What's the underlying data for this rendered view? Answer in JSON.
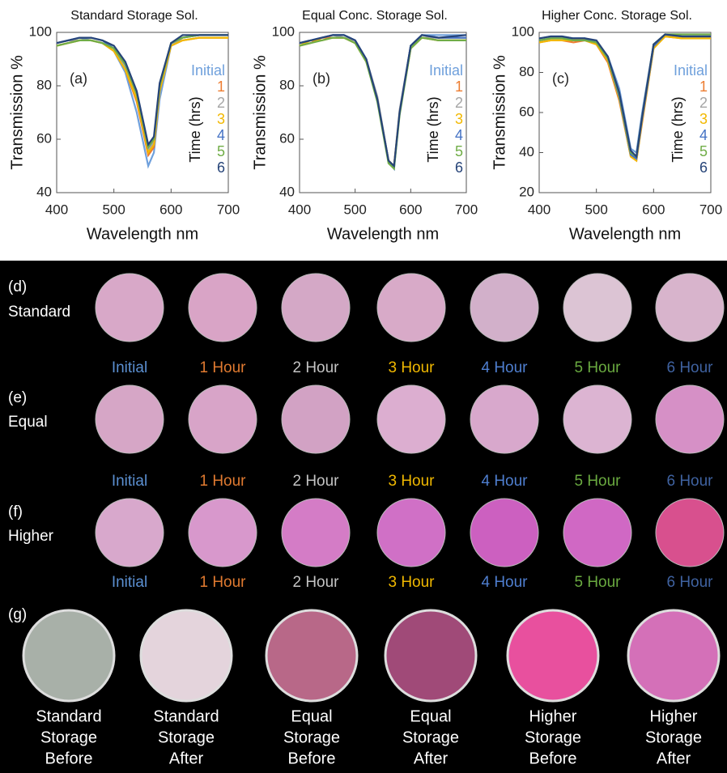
{
  "chart_data": [
    {
      "type": "line",
      "title": "Standard Storage Sol.",
      "panel_label": "(a)",
      "x_label": "Wavelength nm",
      "y_label": "Transmission %",
      "legend_title": "Time (hrs)",
      "x": [
        400,
        420,
        440,
        460,
        480,
        500,
        520,
        540,
        560,
        570,
        580,
        600,
        620,
        650,
        700
      ],
      "xlim": [
        400,
        700
      ],
      "xticks": [
        400,
        500,
        600,
        700
      ],
      "ylim": [
        40,
        100
      ],
      "yticks": [
        40,
        60,
        80,
        100
      ],
      "series": [
        {
          "name": "Initial",
          "color": "#6fa0dc",
          "values": [
            96,
            97,
            98,
            97,
            96,
            93,
            85,
            70,
            50,
            55,
            75,
            95,
            98,
            99,
            99
          ]
        },
        {
          "name": "1",
          "color": "#ed7d31",
          "values": [
            95,
            96,
            97,
            97,
            96,
            93,
            86,
            74,
            54,
            57,
            78,
            95,
            97,
            98,
            98
          ]
        },
        {
          "name": "2",
          "color": "#a5a5a5",
          "values": [
            96,
            97,
            97,
            97,
            96,
            94,
            87,
            76,
            56,
            59,
            79,
            95,
            98,
            99,
            99
          ]
        },
        {
          "name": "3",
          "color": "#f2b800",
          "values": [
            95,
            96,
            97,
            97,
            96,
            93,
            86,
            75,
            55,
            58,
            78,
            95,
            97,
            98,
            98
          ]
        },
        {
          "name": "4",
          "color": "#4472c4",
          "values": [
            96,
            97,
            98,
            98,
            97,
            94,
            88,
            77,
            57,
            60,
            80,
            96,
            98,
            99,
            99
          ]
        },
        {
          "name": "5",
          "color": "#70ad47",
          "values": [
            95,
            96,
            97,
            97,
            96,
            94,
            88,
            77,
            57,
            60,
            80,
            96,
            98,
            99,
            99
          ]
        },
        {
          "name": "6",
          "color": "#264478",
          "values": [
            96,
            97,
            98,
            98,
            97,
            95,
            89,
            78,
            58,
            61,
            81,
            96,
            99,
            99,
            99
          ]
        }
      ]
    },
    {
      "type": "line",
      "title": "Equal Conc. Storage Sol.",
      "panel_label": "(b)",
      "x_label": "Wavelength nm",
      "y_label": "Transmission %",
      "legend_title": "Time (hrs)",
      "x": [
        400,
        420,
        440,
        460,
        480,
        500,
        520,
        540,
        560,
        570,
        580,
        600,
        620,
        650,
        700
      ],
      "xlim": [
        400,
        700
      ],
      "xticks": [
        400,
        500,
        600,
        700
      ],
      "ylim": [
        40,
        100
      ],
      "yticks": [
        40,
        60,
        80,
        100
      ],
      "series": [
        {
          "name": "Initial",
          "color": "#6fa0dc",
          "values": [
            96,
            97,
            98,
            99,
            99,
            97,
            90,
            75,
            52,
            50,
            70,
            95,
            99,
            99,
            99
          ]
        },
        {
          "name": "1",
          "color": "#ed7d31",
          "values": [
            95,
            96,
            98,
            98,
            98,
            96,
            90,
            75,
            52,
            50,
            70,
            94,
            98,
            97,
            97
          ]
        },
        {
          "name": "2",
          "color": "#a5a5a5",
          "values": [
            96,
            97,
            98,
            99,
            98,
            97,
            90,
            76,
            52,
            50,
            71,
            95,
            98,
            98,
            98
          ]
        },
        {
          "name": "3",
          "color": "#f2b800",
          "values": [
            95,
            97,
            97,
            98,
            98,
            96,
            89,
            75,
            52,
            50,
            70,
            94,
            98,
            97,
            97
          ]
        },
        {
          "name": "4",
          "color": "#4472c4",
          "values": [
            96,
            97,
            98,
            99,
            99,
            97,
            90,
            75,
            52,
            49,
            70,
            95,
            99,
            98,
            98
          ]
        },
        {
          "name": "5",
          "color": "#70ad47",
          "values": [
            95,
            96,
            97,
            98,
            98,
            96,
            89,
            74,
            51,
            49,
            69,
            94,
            98,
            97,
            97
          ]
        },
        {
          "name": "6",
          "color": "#264478",
          "values": [
            96,
            97,
            98,
            99,
            99,
            97,
            90,
            75,
            52,
            50,
            70,
            95,
            99,
            98,
            99
          ]
        }
      ]
    },
    {
      "type": "line",
      "title": "Higher Conc. Storage Sol.",
      "panel_label": "(c)",
      "x_label": "Wavelength nm",
      "y_label": "Transmission %",
      "legend_title": "Time (hrs)",
      "x": [
        400,
        420,
        440,
        460,
        480,
        500,
        520,
        540,
        560,
        570,
        580,
        600,
        620,
        650,
        700
      ],
      "xlim": [
        400,
        700
      ],
      "xticks": [
        400,
        500,
        600,
        700
      ],
      "ylim": [
        20,
        100
      ],
      "yticks": [
        20,
        40,
        60,
        80,
        100
      ],
      "series": [
        {
          "name": "Initial",
          "color": "#6fa0dc",
          "values": [
            97,
            98,
            98,
            97,
            97,
            95,
            88,
            72,
            42,
            40,
            60,
            94,
            99,
            99,
            99
          ]
        },
        {
          "name": "1",
          "color": "#ed7d31",
          "values": [
            95,
            96,
            96,
            95,
            96,
            94,
            85,
            66,
            38,
            36,
            55,
            92,
            98,
            97,
            97
          ]
        },
        {
          "name": "2",
          "color": "#a5a5a5",
          "values": [
            96,
            97,
            97,
            96,
            96,
            95,
            86,
            68,
            39,
            37,
            57,
            93,
            98,
            98,
            98
          ]
        },
        {
          "name": "3",
          "color": "#f2b800",
          "values": [
            95,
            96,
            96,
            96,
            96,
            94,
            86,
            67,
            38,
            36,
            56,
            92,
            98,
            97,
            97
          ]
        },
        {
          "name": "4",
          "color": "#4472c4",
          "values": [
            96,
            97,
            97,
            97,
            97,
            95,
            87,
            68,
            39,
            37,
            57,
            93,
            99,
            98,
            98
          ]
        },
        {
          "name": "5",
          "color": "#70ad47",
          "values": [
            96,
            97,
            97,
            96,
            96,
            95,
            87,
            69,
            40,
            38,
            58,
            94,
            99,
            99,
            99
          ]
        },
        {
          "name": "6",
          "color": "#264478",
          "values": [
            97,
            98,
            98,
            97,
            97,
            96,
            88,
            70,
            41,
            38,
            58,
            94,
            99,
            98,
            98
          ]
        }
      ]
    }
  ],
  "rows": [
    {
      "letter": "(d)",
      "name": "Standard",
      "times": [
        "Initial",
        "1 Hour",
        "2 Hour",
        "3 Hour",
        "4 Hour",
        "5 Hour",
        "6 Hour"
      ]
    },
    {
      "letter": "(e)",
      "name": "Equal",
      "times": [
        "Initial",
        "1 Hour",
        "2 Hour",
        "3 Hour",
        "4 Hour",
        "5 Hour",
        "6 Hour"
      ]
    },
    {
      "letter": "(f)",
      "name": "Higher",
      "times": [
        "Initial",
        "1 Hour",
        "2 Hour",
        "3 Hour",
        "4 Hour",
        "5 Hour",
        "6 Hour"
      ]
    }
  ],
  "comparison": {
    "letter": "(g)",
    "captions": [
      [
        "Standard",
        "Storage",
        "Before"
      ],
      [
        "Standard",
        "Storage",
        "After"
      ],
      [
        "Equal",
        "Storage",
        "Before"
      ],
      [
        "Equal",
        "Storage",
        "After"
      ],
      [
        "Higher",
        "Storage",
        "Before"
      ],
      [
        "Higher",
        "Storage",
        "After"
      ]
    ]
  }
}
